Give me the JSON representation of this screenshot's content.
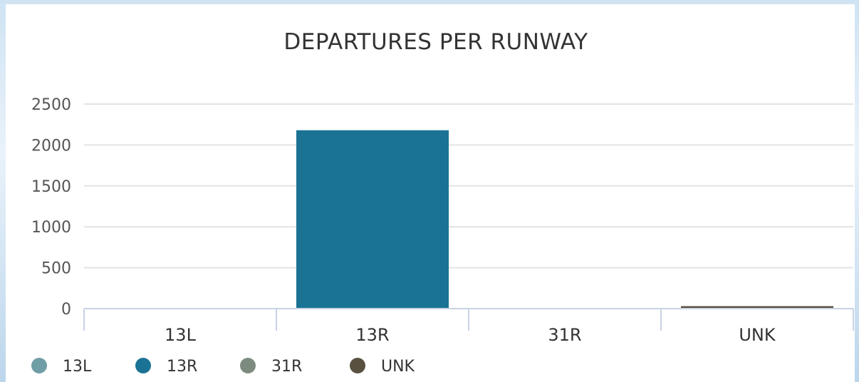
{
  "chart_data": {
    "type": "bar",
    "title": "DEPARTURES PER RUNWAY",
    "xlabel": "",
    "ylabel": "",
    "categories": [
      "13L",
      "13R",
      "31R",
      "UNK"
    ],
    "values": [
      0,
      2180,
      0,
      30
    ],
    "ylim": [
      0,
      2500
    ],
    "yticks": [
      0,
      500,
      1000,
      1500,
      2000,
      2500
    ],
    "grid": true,
    "legend_position": "bottom-left",
    "colors": [
      "#6f9ea6",
      "#1a7394",
      "#7d8b7f",
      "#5a5040"
    ],
    "legend": [
      "13L",
      "13R",
      "31R",
      "UNK"
    ]
  }
}
